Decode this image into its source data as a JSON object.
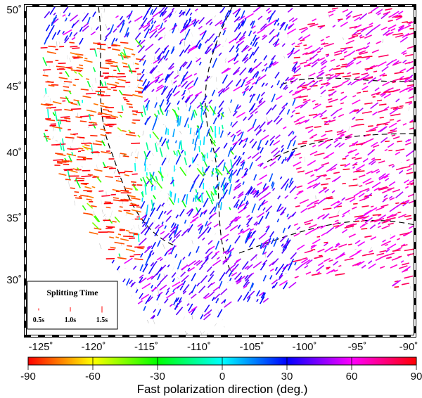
{
  "map": {
    "lat_labels": [
      "50˚",
      "45˚",
      "40˚",
      "35˚",
      "30˚"
    ],
    "lon_labels": [
      "-125˚",
      "-120˚",
      "-115˚",
      "-110˚",
      "-105˚",
      "-100˚",
      "-95˚",
      "-90˚"
    ]
  },
  "legend": {
    "title": "Splitting Time",
    "items": [
      {
        "label": "0.5s",
        "seconds": 0.5
      },
      {
        "label": "1.0s",
        "seconds": 1.0
      },
      {
        "label": "1.5s",
        "seconds": 1.5
      }
    ],
    "bar_color": "#ff3030"
  },
  "colorbar": {
    "title": "Fast polarization direction (deg.)",
    "ticks": [
      "-90",
      "-60",
      "-30",
      "0",
      "30",
      "60",
      "90"
    ],
    "range": [
      -90,
      90
    ],
    "colors": [
      "#ff0000",
      "#ffff00",
      "#00ff00",
      "#00ffff",
      "#0000ff",
      "#ff00ff",
      "#ff0000"
    ]
  }
}
